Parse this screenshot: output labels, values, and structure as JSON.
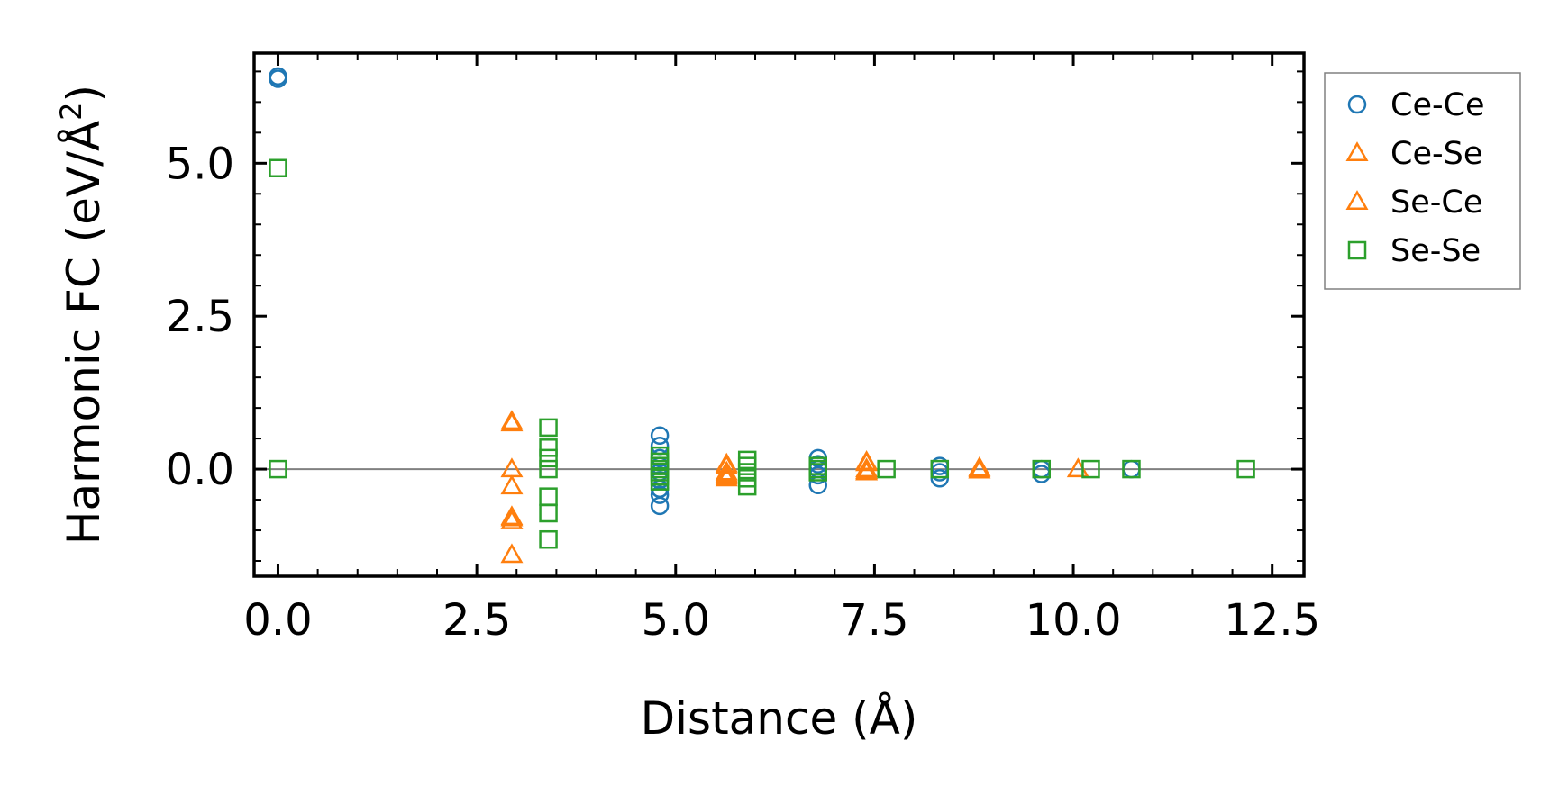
{
  "chart_data": {
    "type": "scatter",
    "xlabel": "Distance (Å)",
    "ylabel_main": "Harmonic FC (eV/Å",
    "ylabel_sup": "2",
    "ylabel_end": ")",
    "xlim": [
      -0.3,
      12.9
    ],
    "ylim": [
      -1.75,
      6.8
    ],
    "xticks": [
      0.0,
      2.5,
      5.0,
      7.5,
      10.0,
      12.5
    ],
    "xtick_labels": [
      "0.0",
      "2.5",
      "5.0",
      "7.5",
      "10.0",
      "12.5"
    ],
    "yticks": [
      0.0,
      2.5,
      5.0
    ],
    "ytick_labels": [
      "0.0",
      "2.5",
      "5.0"
    ],
    "x_minor_step": 0.5,
    "y_minor_step": 0.5,
    "zero_line": 0.0,
    "legend_position": "outside-right-top",
    "series": [
      {
        "name": "Ce-Ce",
        "marker": "circle",
        "color": "#1f77b4",
        "points": [
          [
            0.0,
            6.42
          ],
          [
            0.0,
            6.38
          ],
          [
            4.8,
            0.55
          ],
          [
            4.8,
            0.38
          ],
          [
            4.8,
            0.18
          ],
          [
            4.8,
            0.05
          ],
          [
            4.8,
            -0.05
          ],
          [
            4.8,
            -0.18
          ],
          [
            4.8,
            -0.32
          ],
          [
            4.8,
            -0.42
          ],
          [
            4.8,
            -0.6
          ],
          [
            6.79,
            0.18
          ],
          [
            6.79,
            0.08
          ],
          [
            6.79,
            0.0
          ],
          [
            6.79,
            -0.1
          ],
          [
            6.79,
            -0.26
          ],
          [
            8.32,
            0.05
          ],
          [
            8.32,
            -0.05
          ],
          [
            8.32,
            -0.15
          ],
          [
            9.6,
            0.0
          ],
          [
            9.6,
            -0.08
          ],
          [
            10.73,
            0.0
          ]
        ]
      },
      {
        "name": "Ce-Se",
        "marker": "triangle",
        "color": "#ff7f0e",
        "points": [
          [
            2.94,
            0.75
          ],
          [
            2.94,
            0.0
          ],
          [
            2.94,
            -0.28
          ],
          [
            2.94,
            -0.8
          ],
          [
            2.94,
            -0.85
          ],
          [
            2.94,
            -1.4
          ],
          [
            5.64,
            0.08
          ],
          [
            5.64,
            -0.05
          ],
          [
            5.64,
            -0.1
          ],
          [
            5.64,
            -0.12
          ],
          [
            5.64,
            -0.15
          ],
          [
            7.4,
            0.12
          ],
          [
            7.4,
            0.0
          ],
          [
            7.4,
            -0.05
          ],
          [
            8.82,
            0.0
          ],
          [
            8.82,
            -0.02
          ],
          [
            10.06,
            0.0
          ]
        ]
      },
      {
        "name": "Se-Ce",
        "marker": "triangle",
        "color": "#ff7f0e",
        "points": [
          [
            2.94,
            0.78
          ],
          [
            2.94,
            -0.78
          ],
          [
            5.64,
            0.05
          ],
          [
            5.64,
            -0.08
          ],
          [
            7.4,
            0.1
          ],
          [
            7.4,
            -0.03
          ],
          [
            8.82,
            0.02
          ]
        ]
      },
      {
        "name": "Se-Se",
        "marker": "square",
        "color": "#2ca02c",
        "points": [
          [
            0.0,
            4.92
          ],
          [
            0.0,
            0.0
          ],
          [
            3.4,
            0.68
          ],
          [
            3.4,
            0.35
          ],
          [
            3.4,
            0.18
          ],
          [
            3.4,
            0.0
          ],
          [
            3.4,
            -0.45
          ],
          [
            3.4,
            -0.72
          ],
          [
            3.4,
            -1.15
          ],
          [
            4.8,
            0.22
          ],
          [
            4.8,
            0.12
          ],
          [
            4.8,
            0.05
          ],
          [
            4.8,
            0.0
          ],
          [
            4.8,
            -0.05
          ],
          [
            4.8,
            -0.12
          ],
          [
            4.8,
            -0.2
          ],
          [
            5.9,
            0.15
          ],
          [
            5.9,
            0.05
          ],
          [
            5.9,
            -0.05
          ],
          [
            5.9,
            -0.15
          ],
          [
            5.9,
            -0.28
          ],
          [
            6.79,
            0.05
          ],
          [
            6.79,
            0.0
          ],
          [
            6.79,
            -0.05
          ],
          [
            7.65,
            0.0
          ],
          [
            8.32,
            0.0
          ],
          [
            9.6,
            0.0
          ],
          [
            10.22,
            0.0
          ],
          [
            10.73,
            0.0
          ],
          [
            12.17,
            0.0
          ]
        ]
      }
    ]
  }
}
